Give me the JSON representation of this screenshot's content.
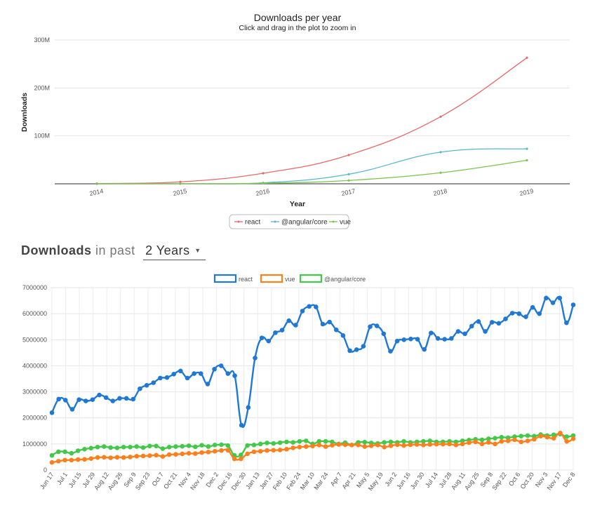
{
  "chart_data": [
    {
      "type": "line",
      "title": "Downloads per year",
      "subtitle": "Click and drag in the plot to zoom in",
      "xlabel": "Year",
      "ylabel": "Downloads",
      "x": [
        "2014",
        "2015",
        "2016",
        "2017",
        "2018",
        "2019"
      ],
      "y_ticks": [
        "100M",
        "200M",
        "300M"
      ],
      "ylim": [
        0,
        300
      ],
      "y_unit": "M",
      "legend_position": "bottom",
      "series": [
        {
          "name": "react",
          "color": "#e8696b",
          "values": [
            0.5,
            4,
            22,
            60,
            140,
            263
          ]
        },
        {
          "name": "@angular/core",
          "color": "#5bb7c9",
          "values": [
            0,
            0.2,
            2,
            20,
            66,
            73
          ]
        },
        {
          "name": "vue",
          "color": "#7cc44e",
          "values": [
            0,
            0.1,
            1,
            7,
            23,
            49
          ]
        }
      ]
    },
    {
      "type": "line",
      "title": "",
      "y_ticks": [
        "0",
        "1000000",
        "2000000",
        "3000000",
        "4000000",
        "5000000",
        "6000000",
        "7000000"
      ],
      "ylim": [
        0,
        7000000
      ],
      "legend_position": "top",
      "x_labels": [
        "Jun 17",
        "Jul 1",
        "Jul 15",
        "Jul 29",
        "Aug 12",
        "Aug 26",
        "Sep 9",
        "Sep 23",
        "Oct 7",
        "Oct 21",
        "Nov 4",
        "Nov 18",
        "Dec 2",
        "Dec 16",
        "Dec 30",
        "Jan 13",
        "Jan 27",
        "Feb 10",
        "Feb 24",
        "Mar 10",
        "Mar 24",
        "Apr 7",
        "Apr 21",
        "May 5",
        "May 19",
        "Jun 2",
        "Jun 16",
        "Jun 30",
        "Jul 14",
        "Jul 28",
        "Aug 11",
        "Aug 25",
        "Sep 8",
        "Sep 22",
        "Oct 6",
        "Oct 20",
        "Nov 3",
        "Nov 17",
        "Dec 8"
      ],
      "series": [
        {
          "name": "react",
          "color": "#1f78d6",
          "values": [
            2200000,
            2720000,
            2680000,
            2330000,
            2700000,
            2650000,
            2700000,
            2880000,
            2780000,
            2650000,
            2750000,
            2750000,
            2720000,
            3120000,
            3250000,
            3350000,
            3530000,
            3550000,
            3680000,
            3800000,
            3530000,
            3700000,
            3700000,
            3300000,
            3870000,
            4000000,
            3700000,
            3620000,
            1720000,
            2400000,
            4300000,
            5070000,
            4950000,
            5270000,
            5370000,
            5730000,
            5560000,
            6100000,
            6280000,
            6260000,
            5600000,
            5680000,
            5380000,
            5160000,
            4580000,
            4620000,
            4750000,
            5500000,
            5530000,
            5230000,
            4560000,
            4950000,
            5000000,
            5030000,
            5020000,
            4630000,
            5260000,
            5050000,
            5020000,
            5050000,
            5320000,
            5230000,
            5520000,
            5700000,
            5320000,
            5670000,
            5630000,
            5800000,
            6020000,
            6000000,
            5880000,
            6240000,
            6000000,
            6600000,
            6420000,
            6600000,
            5650000,
            6340000
          ]
        },
        {
          "name": "vue",
          "color": "#ff7f1a",
          "values": [
            290000,
            340000,
            380000,
            380000,
            400000,
            410000,
            440000,
            480000,
            490000,
            470000,
            490000,
            480000,
            500000,
            530000,
            540000,
            550000,
            570000,
            520000,
            590000,
            600000,
            620000,
            640000,
            630000,
            670000,
            690000,
            720000,
            750000,
            760000,
            430000,
            430000,
            620000,
            700000,
            720000,
            750000,
            760000,
            770000,
            800000,
            850000,
            880000,
            900000,
            920000,
            960000,
            900000,
            950000,
            980000,
            970000,
            960000,
            960000,
            900000,
            930000,
            960000,
            880000,
            930000,
            970000,
            940000,
            970000,
            980000,
            960000,
            980000,
            990000,
            990000,
            1000000,
            960000,
            1000000,
            1050000,
            1080000,
            1000000,
            1060000,
            1000000,
            1100000,
            1120000,
            1160000,
            1080000,
            1120000,
            1180000,
            1300000,
            1260000,
            1220000,
            1420000,
            1100000,
            1200000
          ]
        },
        {
          "name": "@angular/core",
          "color": "#43c84a",
          "values": [
            560000,
            700000,
            700000,
            640000,
            740000,
            800000,
            840000,
            880000,
            900000,
            860000,
            850000,
            880000,
            880000,
            900000,
            860000,
            920000,
            920000,
            820000,
            880000,
            900000,
            910000,
            930000,
            890000,
            950000,
            900000,
            960000,
            970000,
            940000,
            560000,
            580000,
            940000,
            960000,
            1000000,
            1040000,
            1020000,
            1050000,
            1080000,
            1060000,
            1100000,
            1120000,
            1000000,
            1100000,
            1100000,
            1080000,
            1000000,
            1050000,
            960000,
            1060000,
            1070000,
            1040000,
            1020000,
            1060000,
            1080000,
            1060000,
            1100000,
            1060000,
            1080000,
            1100000,
            1120000,
            1080000,
            1080000,
            1100000,
            1080000,
            1120000,
            1150000,
            1180000,
            1160000,
            1200000,
            1220000,
            1260000,
            1240000,
            1280000,
            1300000,
            1320000,
            1300000,
            1360000,
            1320000,
            1350000,
            1380000,
            1280000,
            1320000
          ]
        }
      ]
    }
  ],
  "heading": {
    "strong": "Downloads",
    "light": "in past",
    "period_value": "2 Years",
    "chevron_icon": "chevron-down-icon"
  }
}
